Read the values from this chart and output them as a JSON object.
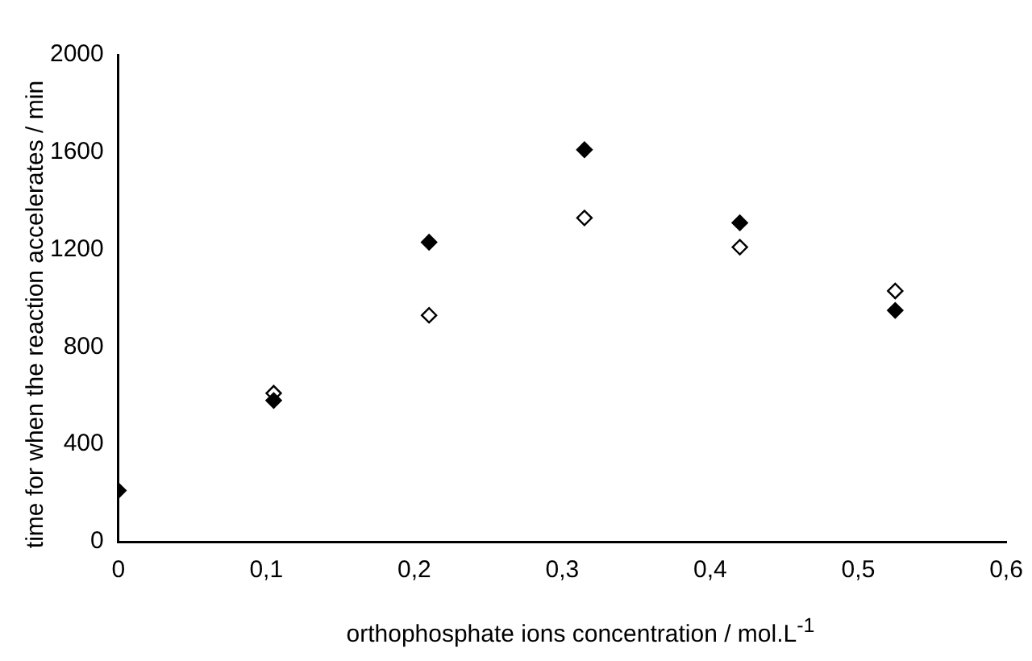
{
  "chart_data": {
    "type": "scatter",
    "xlabel": "orthophosphate ions concentration / mol.L$^{-1}$",
    "ylabel": "time for when the reaction accelerates / min",
    "marker": "diamond",
    "grid": false,
    "legend": false,
    "xlim": [
      0,
      0.6
    ],
    "xticks": [
      0,
      {
        "value": 0.1,
        "label": "0,1"
      },
      {
        "value": 0.2,
        "label": "0,2"
      },
      {
        "value": 0.3,
        "label": "0,3"
      },
      {
        "value": 0.4,
        "label": "0,4"
      },
      {
        "value": 0.5,
        "label": "0,5"
      },
      {
        "value": 0.6,
        "label": "0,6"
      }
    ],
    "ylim": [
      0,
      2000
    ],
    "yticks": [
      0,
      400,
      800,
      1200,
      1600,
      2000
    ],
    "series": [
      {
        "color": "#000000",
        "x": [
          0,
          0.105,
          0.21,
          0.315,
          0.42,
          0.525
        ],
        "values": [
          210,
          580,
          1230,
          1610,
          1310,
          950
        ]
      },
      {
        "color": "#000000",
        "x": [
          0.105,
          0.21,
          0.315,
          0.42,
          0.525
        ],
        "values": [
          610,
          930,
          1330,
          1210,
          1030
        ]
      }
    ]
  }
}
